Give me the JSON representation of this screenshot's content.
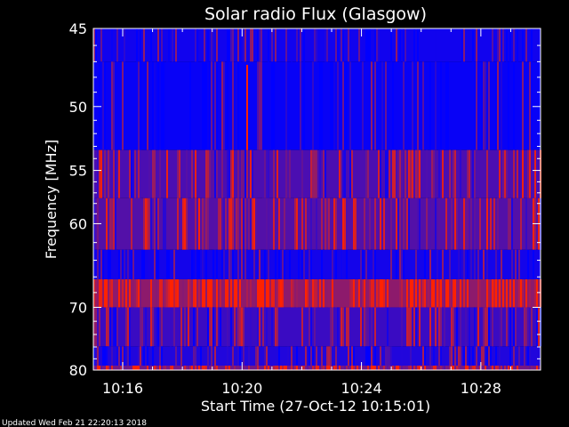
{
  "chart_data": {
    "type": "heatmap",
    "title": "Solar radio Flux (Glasgow)",
    "xlabel": "Start Time (27-Oct-12 10:15:01)",
    "ylabel": "Frequency [MHz]",
    "x_tick_labels": [
      "10:16",
      "10:20",
      "10:24",
      "10:28"
    ],
    "y_tick_labels": [
      "45",
      "50",
      "55",
      "60",
      "70",
      "80"
    ],
    "x_range": [
      "10:15:01",
      "10:30:00"
    ],
    "y_range_mhz": [
      45,
      80
    ],
    "y_scale": "reciprocal",
    "colors": {
      "low": "#0000ff",
      "mid": "#8b1a6e",
      "high": "#ff2200",
      "background": "#000000",
      "axis": "#ffffff"
    },
    "bands": [
      {
        "f_start": 45.0,
        "f_end": 47.0,
        "level": 0.1
      },
      {
        "f_start": 47.0,
        "f_end": 53.3,
        "level": 0.05
      },
      {
        "f_start": 53.3,
        "f_end": 57.5,
        "level": 0.45
      },
      {
        "f_start": 57.5,
        "f_end": 62.8,
        "level": 0.5
      },
      {
        "f_start": 62.8,
        "f_end": 66.3,
        "level": 0.12
      },
      {
        "f_start": 66.3,
        "f_end": 70.0,
        "level": 0.85
      },
      {
        "f_start": 70.0,
        "f_end": 75.9,
        "level": 0.35
      },
      {
        "f_start": 75.9,
        "f_end": 79.2,
        "level": 0.2
      },
      {
        "f_start": 79.2,
        "f_end": 80.0,
        "level": 0.7
      }
    ]
  },
  "footer": "Updated Wed Feb 21 22:20:13 2018"
}
